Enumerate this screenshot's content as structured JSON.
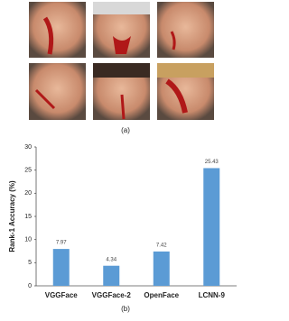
{
  "chart_data": {
    "type": "bar",
    "panel_labels": [
      "(a)",
      "(b)"
    ],
    "ylabel": "Rank-1 Accuracy (%)",
    "categories": [
      "VGGFace",
      "VGGFace-2",
      "OpenFace",
      "LCNN-9"
    ],
    "values": [
      7.97,
      4.34,
      7.42,
      25.43
    ],
    "color": "#5b9bd5",
    "ylim": [
      0,
      30
    ],
    "yticks": [
      0,
      5,
      10,
      15,
      20,
      25,
      30
    ]
  }
}
